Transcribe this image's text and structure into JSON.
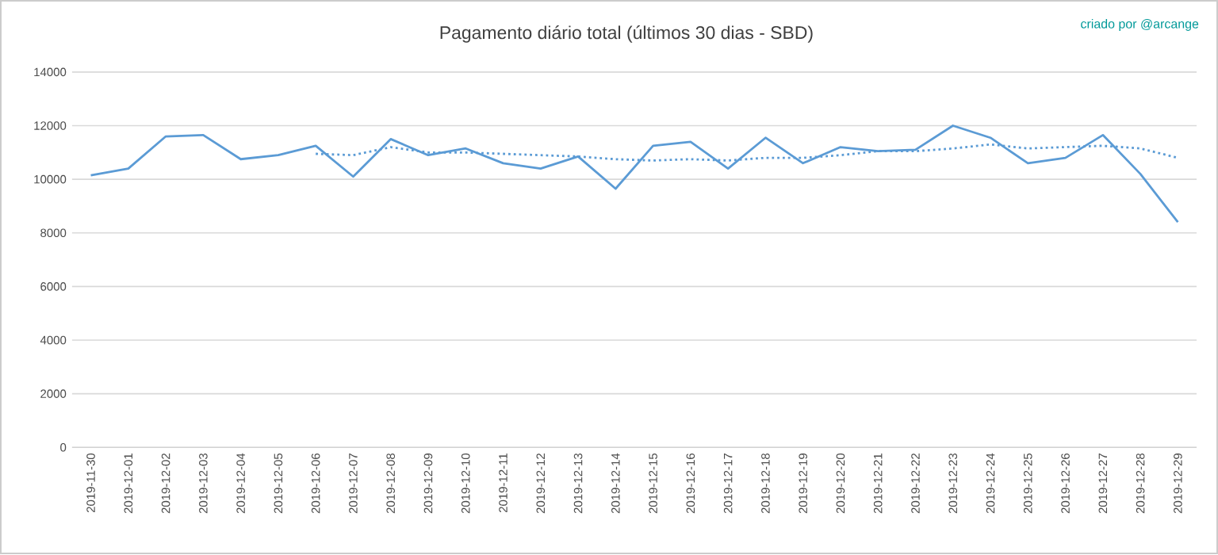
{
  "chart_data": {
    "type": "line",
    "title": "Pagamento diário total  (últimos 30 dias - SBD)",
    "annotations": [
      "criado por @arcange"
    ],
    "categories": [
      "2019-11-30",
      "2019-12-01",
      "2019-12-02",
      "2019-12-03",
      "2019-12-04",
      "2019-12-05",
      "2019-12-06",
      "2019-12-07",
      "2019-12-08",
      "2019-12-09",
      "2019-12-10",
      "2019-12-11",
      "2019-12-12",
      "2019-12-13",
      "2019-12-14",
      "2019-12-15",
      "2019-12-16",
      "2019-12-17",
      "2019-12-18",
      "2019-12-19",
      "2019-12-20",
      "2019-12-21",
      "2019-12-22",
      "2019-12-23",
      "2019-12-24",
      "2019-12-25",
      "2019-12-26",
      "2019-12-27",
      "2019-12-28",
      "2019-12-29"
    ],
    "series": [
      {
        "color": "#5b9bd5",
        "line_style": "solid",
        "values": [
          10150,
          10400,
          11600,
          11650,
          10750,
          10900,
          11250,
          10100,
          11500,
          10900,
          11150,
          10600,
          10400,
          10850,
          9650,
          11250,
          11400,
          10400,
          11550,
          10600,
          11200,
          11050,
          11100,
          12000,
          11550,
          10600,
          10800,
          11650,
          10200,
          8400
        ]
      },
      {
        "color": "#5b9bd5",
        "line_style": "dotted",
        "values": [
          null,
          null,
          null,
          null,
          null,
          null,
          10950,
          10900,
          11200,
          11000,
          11000,
          10950,
          10900,
          10850,
          10750,
          10700,
          10750,
          10700,
          10800,
          10800,
          10900,
          11050,
          11050,
          11150,
          11300,
          11150,
          11200,
          11250,
          11150,
          10800
        ]
      }
    ],
    "ylim": [
      0,
      14000
    ],
    "yticks": [
      0,
      2000,
      4000,
      6000,
      8000,
      10000,
      12000,
      14000
    ],
    "grid": "y",
    "marker": "none"
  }
}
